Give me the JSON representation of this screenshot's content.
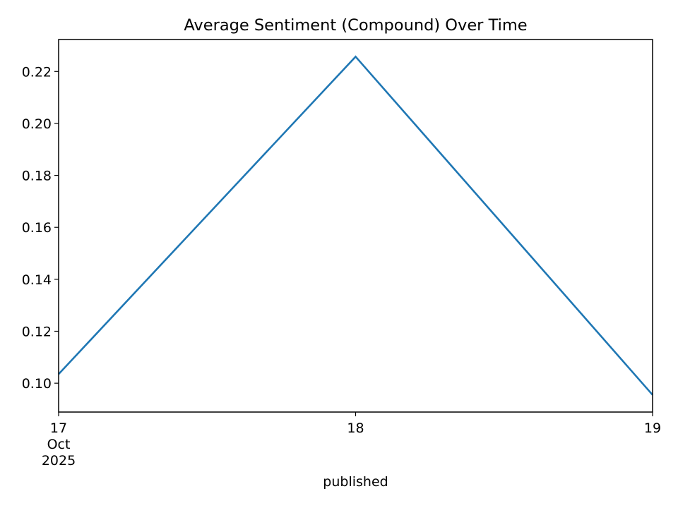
{
  "chart_data": {
    "type": "line",
    "title": "Average Sentiment (Compound) Over Time",
    "xlabel": "published",
    "ylabel": "",
    "x": [
      "2025-10-17",
      "2025-10-18",
      "2025-10-19"
    ],
    "series": [
      {
        "values": [
          0.1035,
          0.2257,
          0.0955
        ],
        "color": "#1f77b4"
      }
    ],
    "x_ticks": [
      {
        "lines": [
          "17",
          "Oct",
          "2025"
        ]
      },
      {
        "lines": [
          "18"
        ]
      },
      {
        "lines": [
          "19"
        ]
      }
    ],
    "y_ticks": [
      "0.10",
      "0.12",
      "0.14",
      "0.16",
      "0.18",
      "0.20",
      "0.22"
    ],
    "ylim": [
      0.0889,
      0.2323
    ],
    "grid": false,
    "legend": "none"
  }
}
